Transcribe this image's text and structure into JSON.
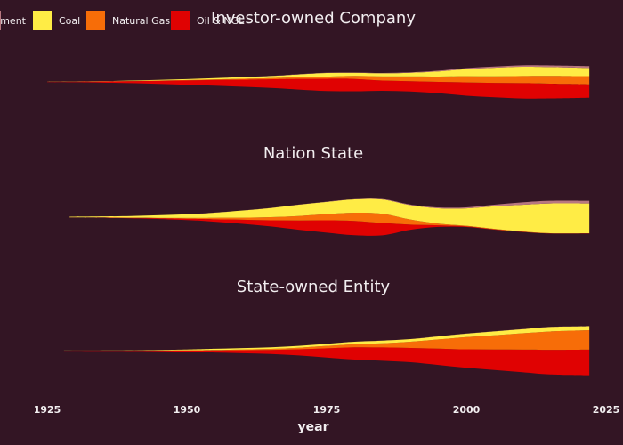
{
  "chart_data": {
    "type": "area",
    "stacked": true,
    "offset": "silhouette",
    "xlabel": "year",
    "xlim": [
      1925,
      2025
    ],
    "x_ticks": [
      1925,
      1950,
      1975,
      2000,
      2025
    ],
    "legend": {
      "placement": "top-left",
      "entries": [
        {
          "name": "Cement",
          "label": "ement",
          "color": "#b87780"
        },
        {
          "name": "Coal",
          "label": "Coal",
          "color": "#ffec45"
        },
        {
          "name": "Natural Gas",
          "label": "Natural Gas",
          "color": "#f76d08"
        },
        {
          "name": "Oil & NGL",
          "label": "Oil & NGL",
          "color": "#e00202"
        }
      ]
    },
    "colors": {
      "background": "#331524",
      "text": "#f2eef0",
      "Cement": "#b87780",
      "Coal": "#ffec45",
      "Natural Gas": "#f76d08",
      "Oil & NGL": "#e00202"
    },
    "panels": [
      {
        "title": "Investor-owned Company",
        "x": [
          1925,
          1935,
          1945,
          1955,
          1965,
          1970,
          1975,
          1980,
          1985,
          1990,
          1995,
          2000,
          2005,
          2010,
          2015,
          2022
        ],
        "series": [
          {
            "name": "Oil & NGL",
            "values": [
              0.2,
              0.6,
              1.5,
              2.8,
              4.2,
              5.2,
              6.0,
              6.0,
              5.0,
              5.0,
              5.5,
              6.5,
              7.0,
              7.5,
              7.2,
              6.5
            ]
          },
          {
            "name": "Natural Gas",
            "values": [
              0.02,
              0.05,
              0.1,
              0.3,
              0.6,
              0.8,
              1.0,
              1.5,
              2.0,
              2.3,
              2.6,
              3.0,
              3.2,
              3.5,
              3.8,
              4.0
            ]
          },
          {
            "name": "Coal",
            "values": [
              0.05,
              0.1,
              0.3,
              0.6,
              1.0,
              1.4,
              1.8,
              1.5,
              1.5,
              1.8,
              2.5,
              3.5,
              4.2,
              4.5,
              4.3,
              4.0
            ]
          },
          {
            "name": "Cement",
            "values": [
              0,
              0,
              0,
              0.02,
              0.05,
              0.08,
              0.1,
              0.12,
              0.14,
              0.2,
              0.35,
              0.5,
              0.6,
              0.7,
              0.8,
              0.9
            ]
          }
        ]
      },
      {
        "title": "Nation State",
        "x": [
          1929,
          1940,
          1950,
          1955,
          1960,
          1965,
          1970,
          1975,
          1980,
          1985,
          1990,
          1995,
          2000,
          2005,
          2010,
          2015,
          2022
        ],
        "series": [
          {
            "name": "Oil & NGL",
            "values": [
              0.05,
              0.2,
              0.6,
              1.2,
              2.0,
              3.0,
              4.5,
              6.0,
              7.0,
              6.0,
              2.5,
              0.8,
              0.3,
              0.2,
              0.15,
              0.1,
              0.1
            ]
          },
          {
            "name": "Natural Gas",
            "values": [
              0.02,
              0.1,
              0.4,
              0.7,
              1.0,
              1.5,
              2.2,
              3.0,
              4.0,
              4.5,
              2.5,
              0.8,
              0.3,
              0.2,
              0.15,
              0.1,
              0.1
            ]
          },
          {
            "name": "Coal",
            "values": [
              0.3,
              0.8,
              1.8,
              2.5,
              3.5,
              4.5,
              5.5,
              6.0,
              6.5,
              7.0,
              7.0,
              7.5,
              8.5,
              11.0,
              13.0,
              14.5,
              14.5
            ]
          },
          {
            "name": "Cement",
            "values": [
              0,
              0,
              0.01,
              0.02,
              0.03,
              0.05,
              0.08,
              0.1,
              0.15,
              0.2,
              0.3,
              0.4,
              0.5,
              0.8,
              1.2,
              1.3,
              1.3
            ]
          }
        ]
      },
      {
        "title": "State-owned Entity",
        "x": [
          1928,
          1940,
          1950,
          1955,
          1960,
          1965,
          1970,
          1975,
          1980,
          1985,
          1990,
          1995,
          2000,
          2005,
          2010,
          2015,
          2022
        ],
        "series": [
          {
            "name": "Oil & NGL",
            "values": [
              0.05,
              0.2,
              0.6,
              1.0,
              1.5,
              2.0,
              3.0,
              4.5,
              6.0,
              6.5,
              7.0,
              8.0,
              9.0,
              10.0,
              11.0,
              12.0,
              12.5
            ]
          },
          {
            "name": "Natural Gas",
            "values": [
              0.02,
              0.05,
              0.1,
              0.2,
              0.3,
              0.5,
              0.8,
              1.2,
              1.5,
              2.0,
              3.0,
              4.5,
              6.0,
              7.0,
              8.0,
              9.0,
              9.5
            ]
          },
          {
            "name": "Coal",
            "values": [
              0.02,
              0.1,
              0.4,
              0.6,
              0.7,
              0.8,
              0.9,
              1.0,
              1.2,
              1.3,
              1.3,
              1.5,
              1.7,
              1.9,
              2.0,
              2.2,
              2.0
            ]
          },
          {
            "name": "Cement",
            "values": [
              0,
              0,
              0,
              0,
              0.01,
              0.01,
              0.02,
              0.03,
              0.05,
              0.05,
              0.05,
              0.05,
              0.05,
              0.05,
              0.05,
              0.05,
              0.05
            ]
          }
        ]
      }
    ]
  }
}
